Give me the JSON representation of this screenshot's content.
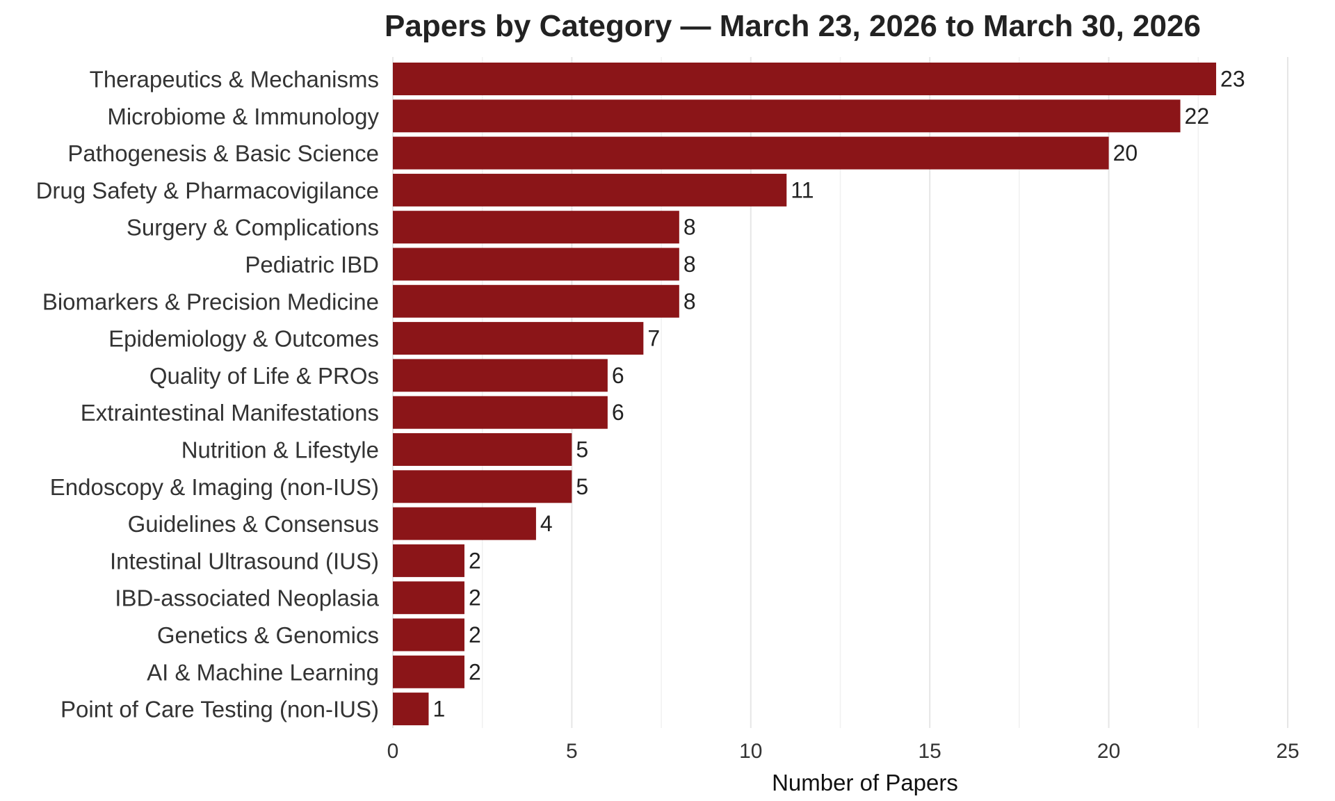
{
  "chart_data": {
    "type": "bar",
    "orientation": "horizontal",
    "title": "Papers by Category — March 23, 2026 to March 30, 2026",
    "xlabel": "Number of Papers",
    "ylabel": "",
    "xlim": [
      0,
      25
    ],
    "xticks": [
      0,
      5,
      10,
      15,
      20,
      25
    ],
    "grid": true,
    "legend": "none",
    "bar_color": "#8b1518",
    "categories": [
      "Therapeutics & Mechanisms",
      "Microbiome & Immunology",
      "Pathogenesis & Basic Science",
      "Drug Safety & Pharmacovigilance",
      "Surgery & Complications",
      "Pediatric IBD",
      "Biomarkers & Precision Medicine",
      "Epidemiology & Outcomes",
      "Quality of Life & PROs",
      "Extraintestinal Manifestations",
      "Nutrition & Lifestyle",
      "Endoscopy & Imaging (non-IUS)",
      "Guidelines & Consensus",
      "Intestinal Ultrasound (IUS)",
      "IBD-associated Neoplasia",
      "Genetics & Genomics",
      "AI & Machine Learning",
      "Point of Care Testing (non-IUS)"
    ],
    "values": [
      23,
      22,
      20,
      11,
      8,
      8,
      8,
      7,
      6,
      6,
      5,
      5,
      4,
      2,
      2,
      2,
      2,
      1
    ]
  }
}
